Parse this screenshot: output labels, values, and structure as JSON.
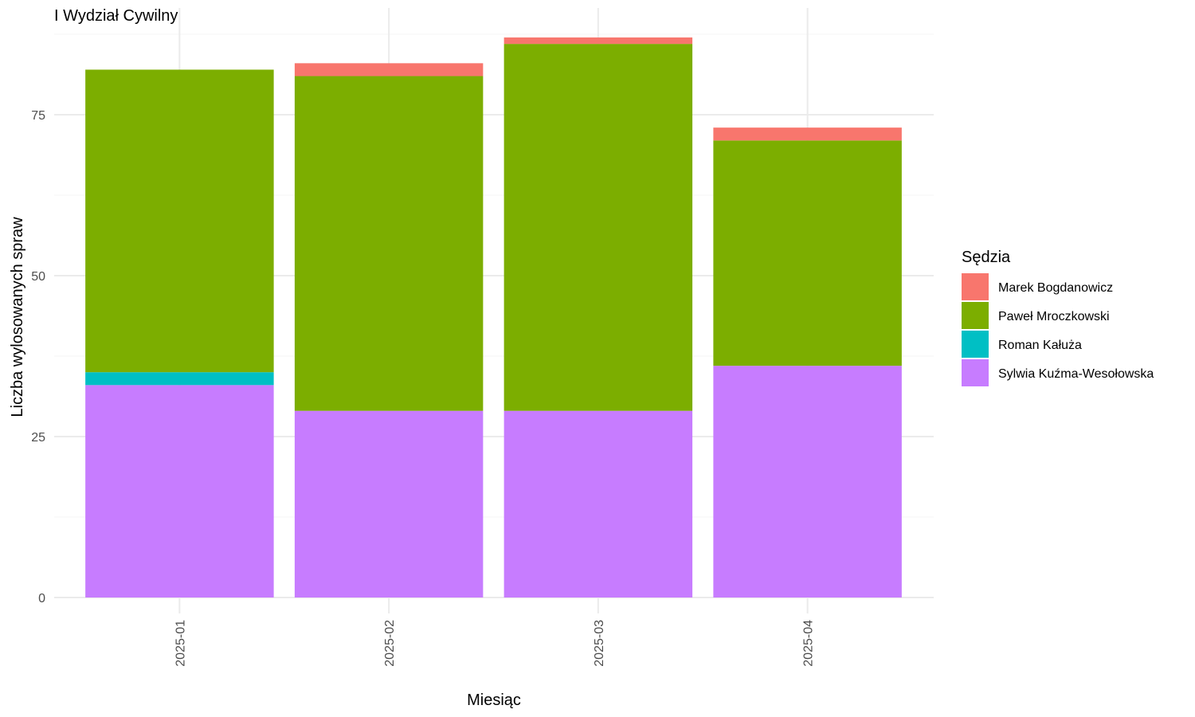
{
  "chart_data": {
    "type": "bar",
    "stacked": true,
    "title": "I Wydział Cywilny",
    "xlabel": "Miesiąc",
    "ylabel": "Liczba wylosowanych spraw",
    "legend_title": "Sędzia",
    "legend_position": "right",
    "grid": true,
    "ylim": [
      0,
      90
    ],
    "yticks": [
      0,
      25,
      50,
      75
    ],
    "categories": [
      "2025-01",
      "2025-02",
      "2025-03",
      "2025-04"
    ],
    "series": [
      {
        "name": "Marek Bogdanowicz",
        "color": "#F8766D",
        "values": [
          0,
          2,
          1,
          2
        ]
      },
      {
        "name": "Paweł Mroczkowski",
        "color": "#7CAE00",
        "values": [
          47,
          52,
          57,
          35
        ]
      },
      {
        "name": "Roman Kałuża",
        "color": "#00BFC4",
        "values": [
          2,
          0,
          0,
          0
        ]
      },
      {
        "name": "Sylwia Kuźma-Wesołowska",
        "color": "#C77CFF",
        "values": [
          33,
          29,
          29,
          36
        ]
      }
    ]
  }
}
